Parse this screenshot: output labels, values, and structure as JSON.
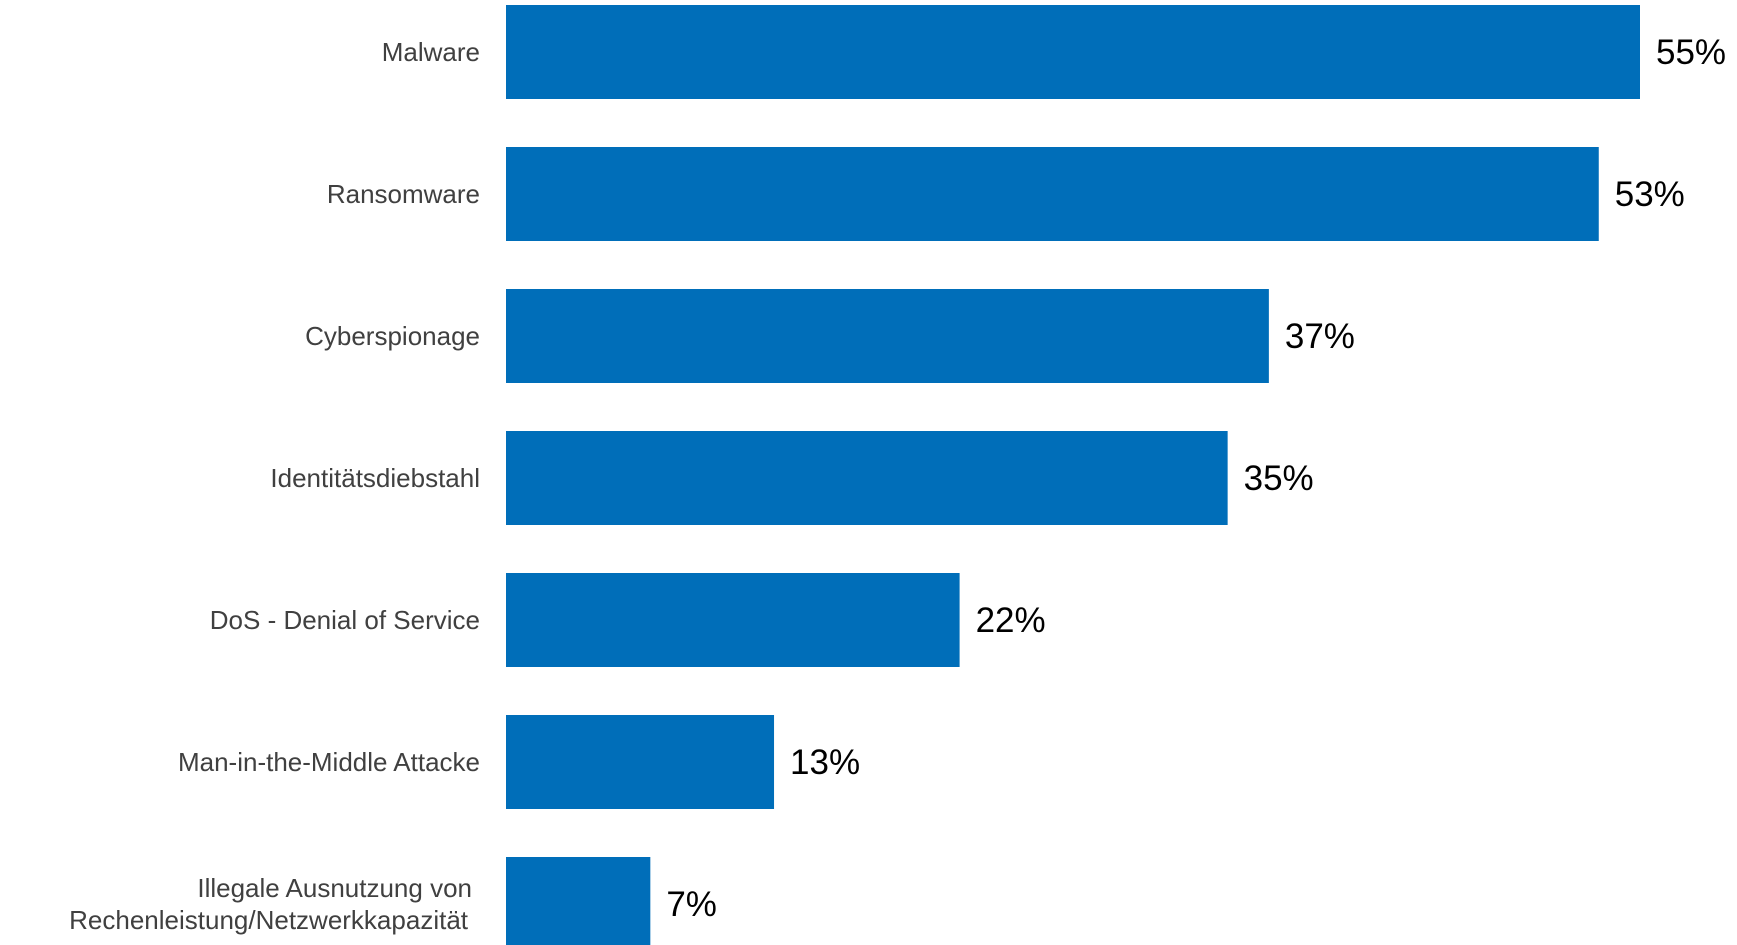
{
  "chart_data": {
    "type": "bar",
    "orientation": "horizontal",
    "categories": [
      "Malware",
      "Ransomware",
      "Cyberspionage",
      "Identitätsdiebstahl",
      "DoS - Denial of Service",
      "Man-in-the-Middle Attacke",
      "Illegale Ausnutzung von Rechenleistung/Netzwerkkapazität"
    ],
    "category_lines": [
      [
        "Malware"
      ],
      [
        "Ransomware"
      ],
      [
        "Cyberspionage"
      ],
      [
        "Identitätsdiebstahl"
      ],
      [
        "DoS - Denial of Service"
      ],
      [
        "Man-in-the-Middle Attacke"
      ],
      [
        "Illegale Ausnutzung von",
        "Rechenleistung/Netzwerkkapazität"
      ]
    ],
    "values": [
      55,
      53,
      37,
      35,
      22,
      13,
      7
    ],
    "value_labels": [
      "55%",
      "53%",
      "37%",
      "35%",
      "22%",
      "13%",
      "7%"
    ],
    "unit": "%",
    "bar_color": "#006EB9",
    "title": "",
    "xlabel": "",
    "ylabel": "",
    "xlim": [
      0,
      55
    ],
    "grid": false,
    "legend": "none"
  }
}
